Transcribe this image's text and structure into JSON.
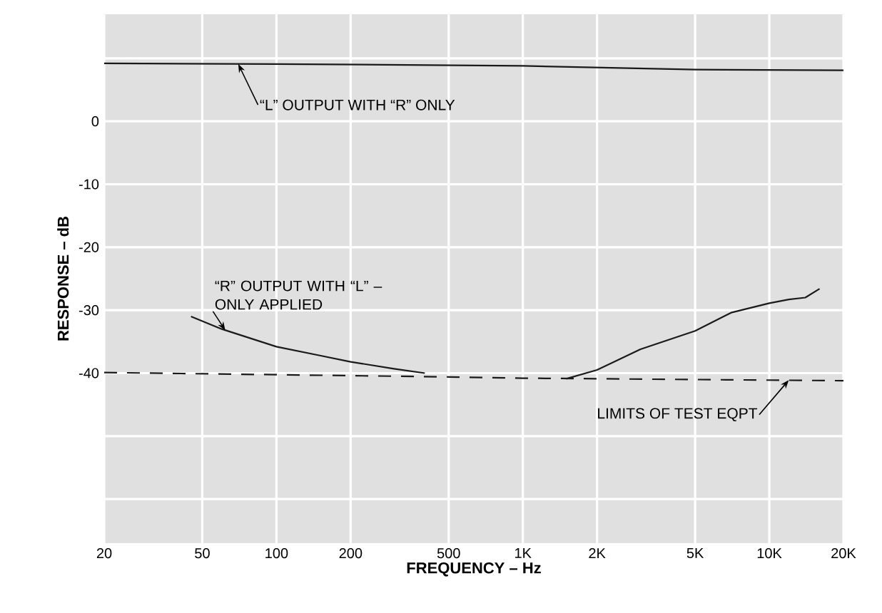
{
  "chart_data": {
    "type": "line",
    "xlabel": "FREQUENCY – Hz",
    "ylabel": "RESPONSE – dB",
    "log": "x",
    "grid": true,
    "xlim": [
      20,
      20000
    ],
    "ylim": [
      -67,
      17
    ],
    "xticks": [
      20,
      50,
      100,
      200,
      500,
      {
        "value": 1000,
        "label": "1K"
      },
      {
        "value": 2000,
        "label": "2K"
      },
      {
        "value": 5000,
        "label": "5K"
      },
      {
        "value": 10000,
        "label": "10K"
      },
      {
        "value": 20000,
        "label": "20K"
      }
    ],
    "yticks": [
      {
        "value": 10,
        "label": null
      },
      0,
      -10,
      -20,
      -30,
      -40,
      {
        "value": -50,
        "label": null
      },
      {
        "value": -60,
        "label": null
      }
    ],
    "series": [
      {
        "color": "#1a1a1a",
        "line_style": "solid",
        "x": [
          20,
          100,
          1000,
          5000,
          20000
        ],
        "values": [
          9.2,
          9.1,
          8.8,
          8.2,
          8.1
        ]
      },
      {
        "color": "#1a1a1a",
        "line_style": "solid",
        "x": [
          45,
          60,
          100,
          150,
          200,
          300,
          400,
          800,
          1500,
          2000,
          3000,
          5000,
          7000,
          10000,
          12000,
          14000,
          16000
        ],
        "values": [
          -31,
          -33,
          -35.8,
          -37.2,
          -38.2,
          -39.3,
          -40,
          null,
          -40.9,
          -39.5,
          -36.2,
          -33.3,
          -30.4,
          -28.9,
          -28.3,
          -28,
          -26.6
        ]
      },
      {
        "color": "#1a1a1a",
        "line_style": "dashed",
        "x": [
          20,
          500,
          1000,
          20000
        ],
        "values": [
          -39.9,
          -40.6,
          -40.8,
          -41.2
        ]
      }
    ],
    "annotations": [
      {
        "text": "“L” OUTPUT WITH “R” ONLY",
        "x": 70,
        "y": 9.1
      },
      {
        "text": "“R” OUTPUT WITH “L” – ONLY APPLIED",
        "x": 62,
        "y": -33.2
      },
      {
        "text": "LIMITS OF TEST EQPT",
        "x": 12000,
        "y": -41.1
      }
    ]
  }
}
